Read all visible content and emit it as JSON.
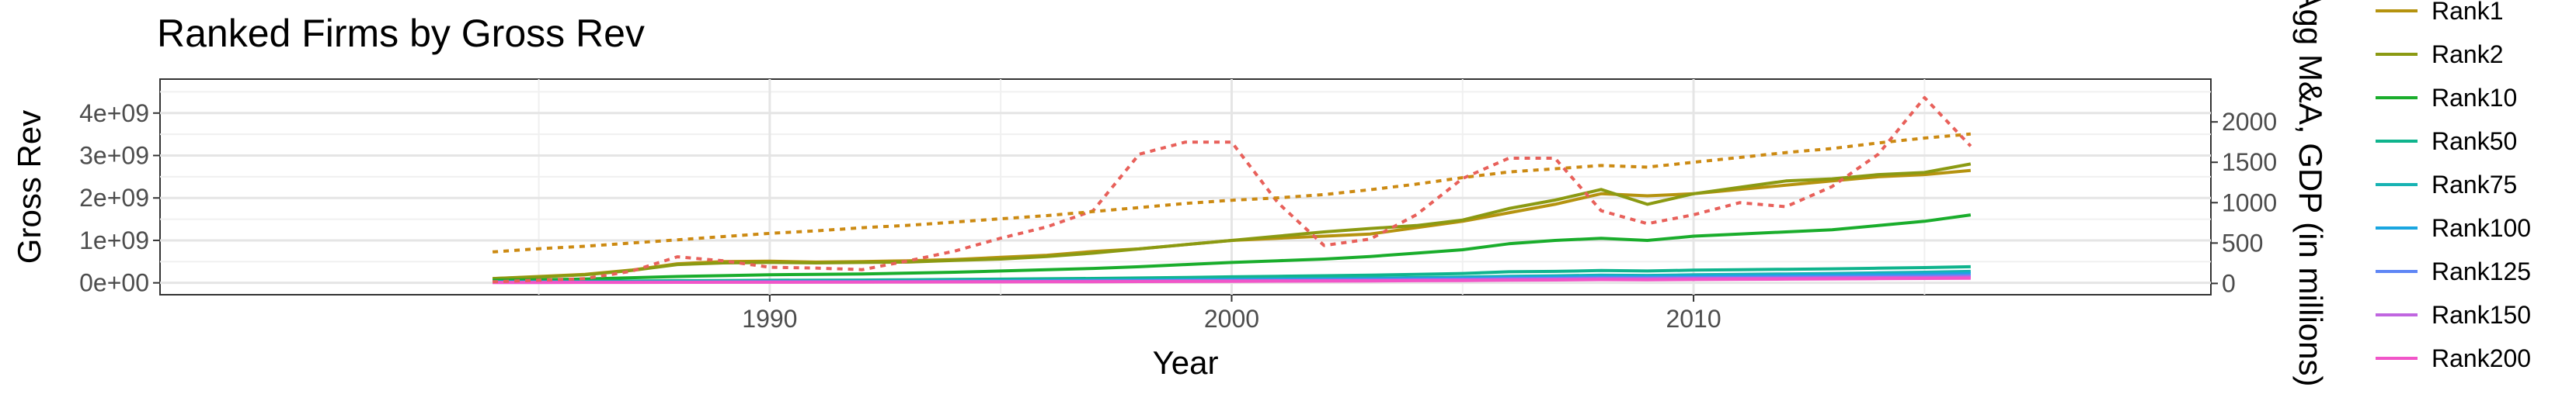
{
  "chart_data": {
    "type": "line",
    "title": "Ranked Firms by Gross Rev",
    "xlabel": "Year",
    "ylabel": "Gross Rev",
    "ylabel_right": "Agg M&A, GDP (in millions)",
    "xlim": [
      1976.8,
      2021.2
    ],
    "ylim": [
      -280000000,
      4800000000
    ],
    "ylim_right": [
      -0.14,
      2.53
    ],
    "y_right_scale_note": "thousands",
    "x_ticks": [
      1990,
      2000,
      2010
    ],
    "x_tick_labels": [
      "1990",
      "2000",
      "2010"
    ],
    "y_ticks": [
      0,
      1000000000,
      2000000000,
      3000000000,
      4000000000
    ],
    "y_tick_labels": [
      "0e+00",
      "1e+09",
      "2e+09",
      "3e+09",
      "4e+09"
    ],
    "y_right_ticks": [
      0,
      500,
      1000,
      1500,
      2000
    ],
    "y_right_tick_labels": [
      "0",
      "500",
      "1000",
      "1500",
      "2000"
    ],
    "grid": true,
    "legend_position": "right",
    "x": [
      1984,
      1985,
      1986,
      1987,
      1988,
      1989,
      1990,
      1991,
      1992,
      1993,
      1994,
      1995,
      1996,
      1997,
      1998,
      1999,
      2000,
      2001,
      2002,
      2003,
      2004,
      2005,
      2006,
      2007,
      2008,
      2009,
      2010,
      2011,
      2012,
      2013,
      2014,
      2015,
      2016
    ],
    "series": [
      {
        "name": "Rank1",
        "axis": "left",
        "style": "solid",
        "color": "#b5930f",
        "values": [
          100000000,
          150000000,
          200000000,
          300000000,
          450000000,
          500000000,
          510000000,
          490000000,
          500000000,
          520000000,
          550000000,
          600000000,
          650000000,
          740000000,
          800000000,
          900000000,
          1000000000,
          1050000000,
          1100000000,
          1150000000,
          1300000000,
          1450000000,
          1650000000,
          1850000000,
          2100000000,
          2050000000,
          2100000000,
          2200000000,
          2300000000,
          2400000000,
          2500000000,
          2550000000,
          2650000000
        ]
      },
      {
        "name": "Rank2",
        "axis": "left",
        "style": "solid",
        "color": "#8b9a12",
        "values": [
          100000000,
          140000000,
          190000000,
          290000000,
          430000000,
          470000000,
          480000000,
          470000000,
          480000000,
          490000000,
          530000000,
          560000000,
          620000000,
          700000000,
          800000000,
          900000000,
          1000000000,
          1100000000,
          1200000000,
          1280000000,
          1350000000,
          1480000000,
          1750000000,
          1950000000,
          2200000000,
          1850000000,
          2100000000,
          2250000000,
          2400000000,
          2450000000,
          2550000000,
          2600000000,
          2800000000
        ]
      },
      {
        "name": "Rank10",
        "axis": "left",
        "style": "solid",
        "color": "#1aad2c",
        "values": [
          60000000,
          70000000,
          90000000,
          120000000,
          150000000,
          170000000,
          190000000,
          200000000,
          210000000,
          230000000,
          250000000,
          280000000,
          310000000,
          340000000,
          380000000,
          430000000,
          480000000,
          520000000,
          560000000,
          620000000,
          700000000,
          780000000,
          920000000,
          1000000000,
          1050000000,
          1000000000,
          1100000000,
          1150000000,
          1200000000,
          1250000000,
          1350000000,
          1450000000,
          1600000000
        ]
      },
      {
        "name": "Rank50",
        "axis": "left",
        "style": "solid",
        "color": "#0fb48d",
        "values": [
          30000000,
          33000000,
          36000000,
          42000000,
          50000000,
          55000000,
          60000000,
          63000000,
          66000000,
          72000000,
          80000000,
          88000000,
          96000000,
          104000000,
          115000000,
          128000000,
          142000000,
          155000000,
          168000000,
          180000000,
          200000000,
          220000000,
          260000000,
          270000000,
          290000000,
          280000000,
          300000000,
          310000000,
          320000000,
          330000000,
          345000000,
          360000000,
          380000000
        ]
      },
      {
        "name": "Rank75",
        "axis": "left",
        "style": "solid",
        "color": "#17b3b3",
        "values": [
          20000000,
          22000000,
          24000000,
          27000000,
          32000000,
          35000000,
          38000000,
          40000000,
          42000000,
          45000000,
          50000000,
          55000000,
          60000000,
          66000000,
          72000000,
          80000000,
          88000000,
          96000000,
          104000000,
          112000000,
          124000000,
          136000000,
          155000000,
          165000000,
          180000000,
          175000000,
          190000000,
          200000000,
          210000000,
          220000000,
          235000000,
          250000000,
          270000000
        ]
      },
      {
        "name": "Rank100",
        "axis": "left",
        "style": "solid",
        "color": "#1aa6e0",
        "values": [
          15000000,
          16000000,
          18000000,
          20000000,
          24000000,
          27000000,
          30000000,
          32000000,
          34000000,
          37000000,
          41000000,
          45000000,
          49000000,
          54000000,
          60000000,
          66000000,
          72000000,
          78000000,
          84000000,
          90000000,
          100000000,
          110000000,
          125000000,
          135000000,
          150000000,
          145000000,
          155000000,
          165000000,
          175000000,
          185000000,
          195000000,
          205000000,
          220000000
        ]
      },
      {
        "name": "Rank125",
        "axis": "left",
        "style": "solid",
        "color": "#5f86f5",
        "values": [
          12000000,
          13000000,
          14000000,
          16000000,
          19000000,
          21000000,
          23000000,
          25000000,
          27000000,
          29000000,
          32000000,
          35000000,
          38000000,
          42000000,
          46000000,
          51000000,
          56000000,
          61000000,
          66000000,
          71000000,
          78000000,
          86000000,
          98000000,
          106000000,
          118000000,
          114000000,
          122000000,
          130000000,
          138000000,
          146000000,
          154000000,
          162000000,
          175000000
        ]
      },
      {
        "name": "Rank150",
        "axis": "left",
        "style": "solid",
        "color": "#c066e0",
        "values": [
          10000000,
          11000000,
          12000000,
          13000000,
          15000000,
          17000000,
          19000000,
          20000000,
          22000000,
          24000000,
          26000000,
          28000000,
          31000000,
          34000000,
          37000000,
          41000000,
          45000000,
          49000000,
          53000000,
          57000000,
          63000000,
          69000000,
          79000000,
          85000000,
          95000000,
          92000000,
          98000000,
          104000000,
          110000000,
          116000000,
          122000000,
          128000000,
          138000000
        ]
      },
      {
        "name": "Rank200",
        "axis": "left",
        "style": "solid",
        "color": "#f155c8",
        "values": [
          8000000,
          9000000,
          10000000,
          11000000,
          12000000,
          14000000,
          15000000,
          16000000,
          17000000,
          19000000,
          21000000,
          23000000,
          25000000,
          27000000,
          30000000,
          33000000,
          36000000,
          39000000,
          42000000,
          45000000,
          50000000,
          55000000,
          63000000,
          68000000,
          76000000,
          73000000,
          78000000,
          83000000,
          88000000,
          93000000,
          98000000,
          103000000,
          110000000
        ]
      },
      {
        "name": "Agg M&A",
        "axis": "right",
        "style": "dotted",
        "color": "#e8605a",
        "values": [
          20,
          40,
          60,
          150,
          330,
          280,
          200,
          190,
          170,
          280,
          400,
          560,
          700,
          900,
          1600,
          1750,
          1750,
          1000,
          470,
          550,
          850,
          1300,
          1550,
          1550,
          900,
          740,
          850,
          1000,
          950,
          1200,
          1600,
          2300,
          1700
        ]
      },
      {
        "name": "GDP",
        "axis": "right",
        "style": "dotted",
        "color": "#cc8a12",
        "values": [
          390,
          430,
          460,
          500,
          540,
          580,
          620,
          650,
          690,
          720,
          760,
          800,
          840,
          890,
          940,
          990,
          1030,
          1060,
          1100,
          1160,
          1230,
          1310,
          1380,
          1420,
          1460,
          1440,
          1500,
          1560,
          1620,
          1670,
          1740,
          1800,
          1850
        ]
      }
    ]
  }
}
